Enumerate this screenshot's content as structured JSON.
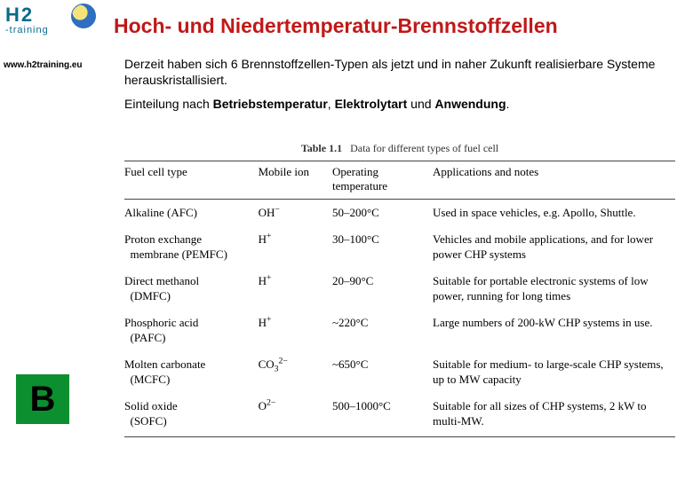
{
  "logo": {
    "text_main": "H2",
    "text_sub": "-training",
    "color": "#0a6b8a"
  },
  "title": {
    "text": "Hoch- und Niedertemperatur-Brennstoffzellen",
    "color": "#c01818",
    "fontsize": 23
  },
  "url": "www.h2training.eu",
  "paragraph1": "Derzeit haben sich 6 Brennstoffzellen-Typen als jetzt und in naher Zukunft realisierbare Systeme herauskristallisiert.",
  "p2_lead": "Einteilung nach  ",
  "p2_b1": "Betriebstemperatur",
  "p2_sep1": ", ",
  "p2_b2": "Elektrolytart",
  "p2_sep2": " und ",
  "p2_b3": "Anwendung",
  "p2_end": ".",
  "table": {
    "caption_label": "Table 1.1",
    "caption_text": "Data for different types of fuel cell",
    "headers": {
      "type": "Fuel cell type",
      "ion": "Mobile ion",
      "temp": "Operating temperature",
      "notes": "Applications and notes"
    },
    "rows": [
      {
        "type_main": "Alkaline (AFC)",
        "type_sub": "",
        "ion_html": "OH<sup>−</sup>",
        "temp": "50–200°C",
        "notes": "Used in space vehicles, e.g. Apollo, Shuttle."
      },
      {
        "type_main": "Proton exchange",
        "type_sub": "membrane (PEMFC)",
        "ion_html": "H<sup>+</sup>",
        "temp": "30–100°C",
        "notes": "Vehicles and mobile applications, and for lower power CHP systems"
      },
      {
        "type_main": "Direct methanol",
        "type_sub": "(DMFC)",
        "ion_html": "H<sup>+</sup>",
        "temp": "20–90°C",
        "notes": "Suitable for portable electronic systems of low power, running for long times"
      },
      {
        "type_main": "Phosphoric acid",
        "type_sub": "(PAFC)",
        "ion_html": "H<sup>+</sup>",
        "temp": "~220°C",
        "notes": "Large numbers of 200-kW CHP systems in use."
      },
      {
        "type_main": "Molten carbonate",
        "type_sub": "(MCFC)",
        "ion_html": "CO<sub>3</sub><sup>2−</sup>",
        "temp": "~650°C",
        "notes": "Suitable for medium- to large-scale CHP systems, up to MW capacity"
      },
      {
        "type_main": "Solid oxide",
        "type_sub": "(SOFC)",
        "ion_html": "O<sup>2−</sup>",
        "temp": "500–1000°C",
        "notes": "Suitable for all sizes of CHP systems, 2 kW to multi-MW."
      }
    ]
  },
  "badge": {
    "letter": "B",
    "bg": "#0b8f2f"
  }
}
